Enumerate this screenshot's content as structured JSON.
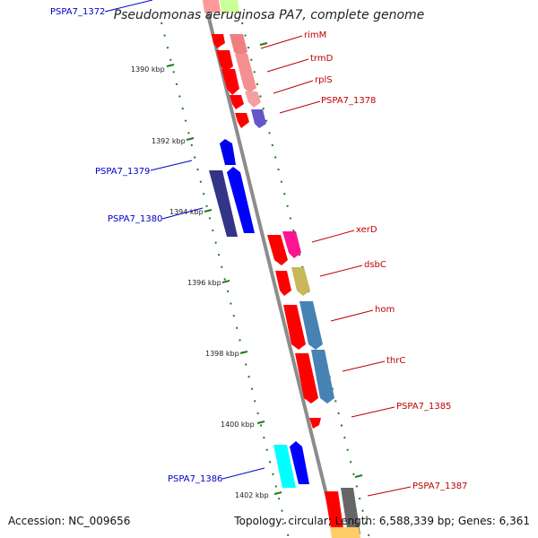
{
  "title": "Pseudomonas aeruginosa PA7, complete genome",
  "footer": {
    "accession": "Accession: NC_009656",
    "summary": "Topology: circular; Length: 6,588,339 bp; Genes: 6,361"
  },
  "colors": {
    "backbone": "#8c8c8c",
    "tick": "#1e7d1e",
    "forward_label": "#c00000",
    "reverse_label": "#0000c8"
  },
  "ticks": [
    "1390 kbp",
    "1392 kbp",
    "1394 kbp",
    "1396 kbp",
    "1398 kbp",
    "1400 kbp",
    "1402 kbp"
  ],
  "gene_labels": [
    {
      "text": "PSPA7_1372",
      "strand": "reverse"
    },
    {
      "text": "rimM",
      "strand": "forward"
    },
    {
      "text": "trmD",
      "strand": "forward"
    },
    {
      "text": "rplS",
      "strand": "forward"
    },
    {
      "text": "PSPA7_1378",
      "strand": "forward"
    },
    {
      "text": "PSPA7_1379",
      "strand": "reverse"
    },
    {
      "text": "PSPA7_1380",
      "strand": "reverse"
    },
    {
      "text": "xerD",
      "strand": "forward"
    },
    {
      "text": "dsbC",
      "strand": "forward"
    },
    {
      "text": "hom",
      "strand": "forward"
    },
    {
      "text": "thrC",
      "strand": "forward"
    },
    {
      "text": "PSPA7_1385",
      "strand": "forward"
    },
    {
      "text": "PSPA7_1386",
      "strand": "reverse"
    },
    {
      "text": "PSPA7_1387",
      "strand": "forward"
    }
  ]
}
